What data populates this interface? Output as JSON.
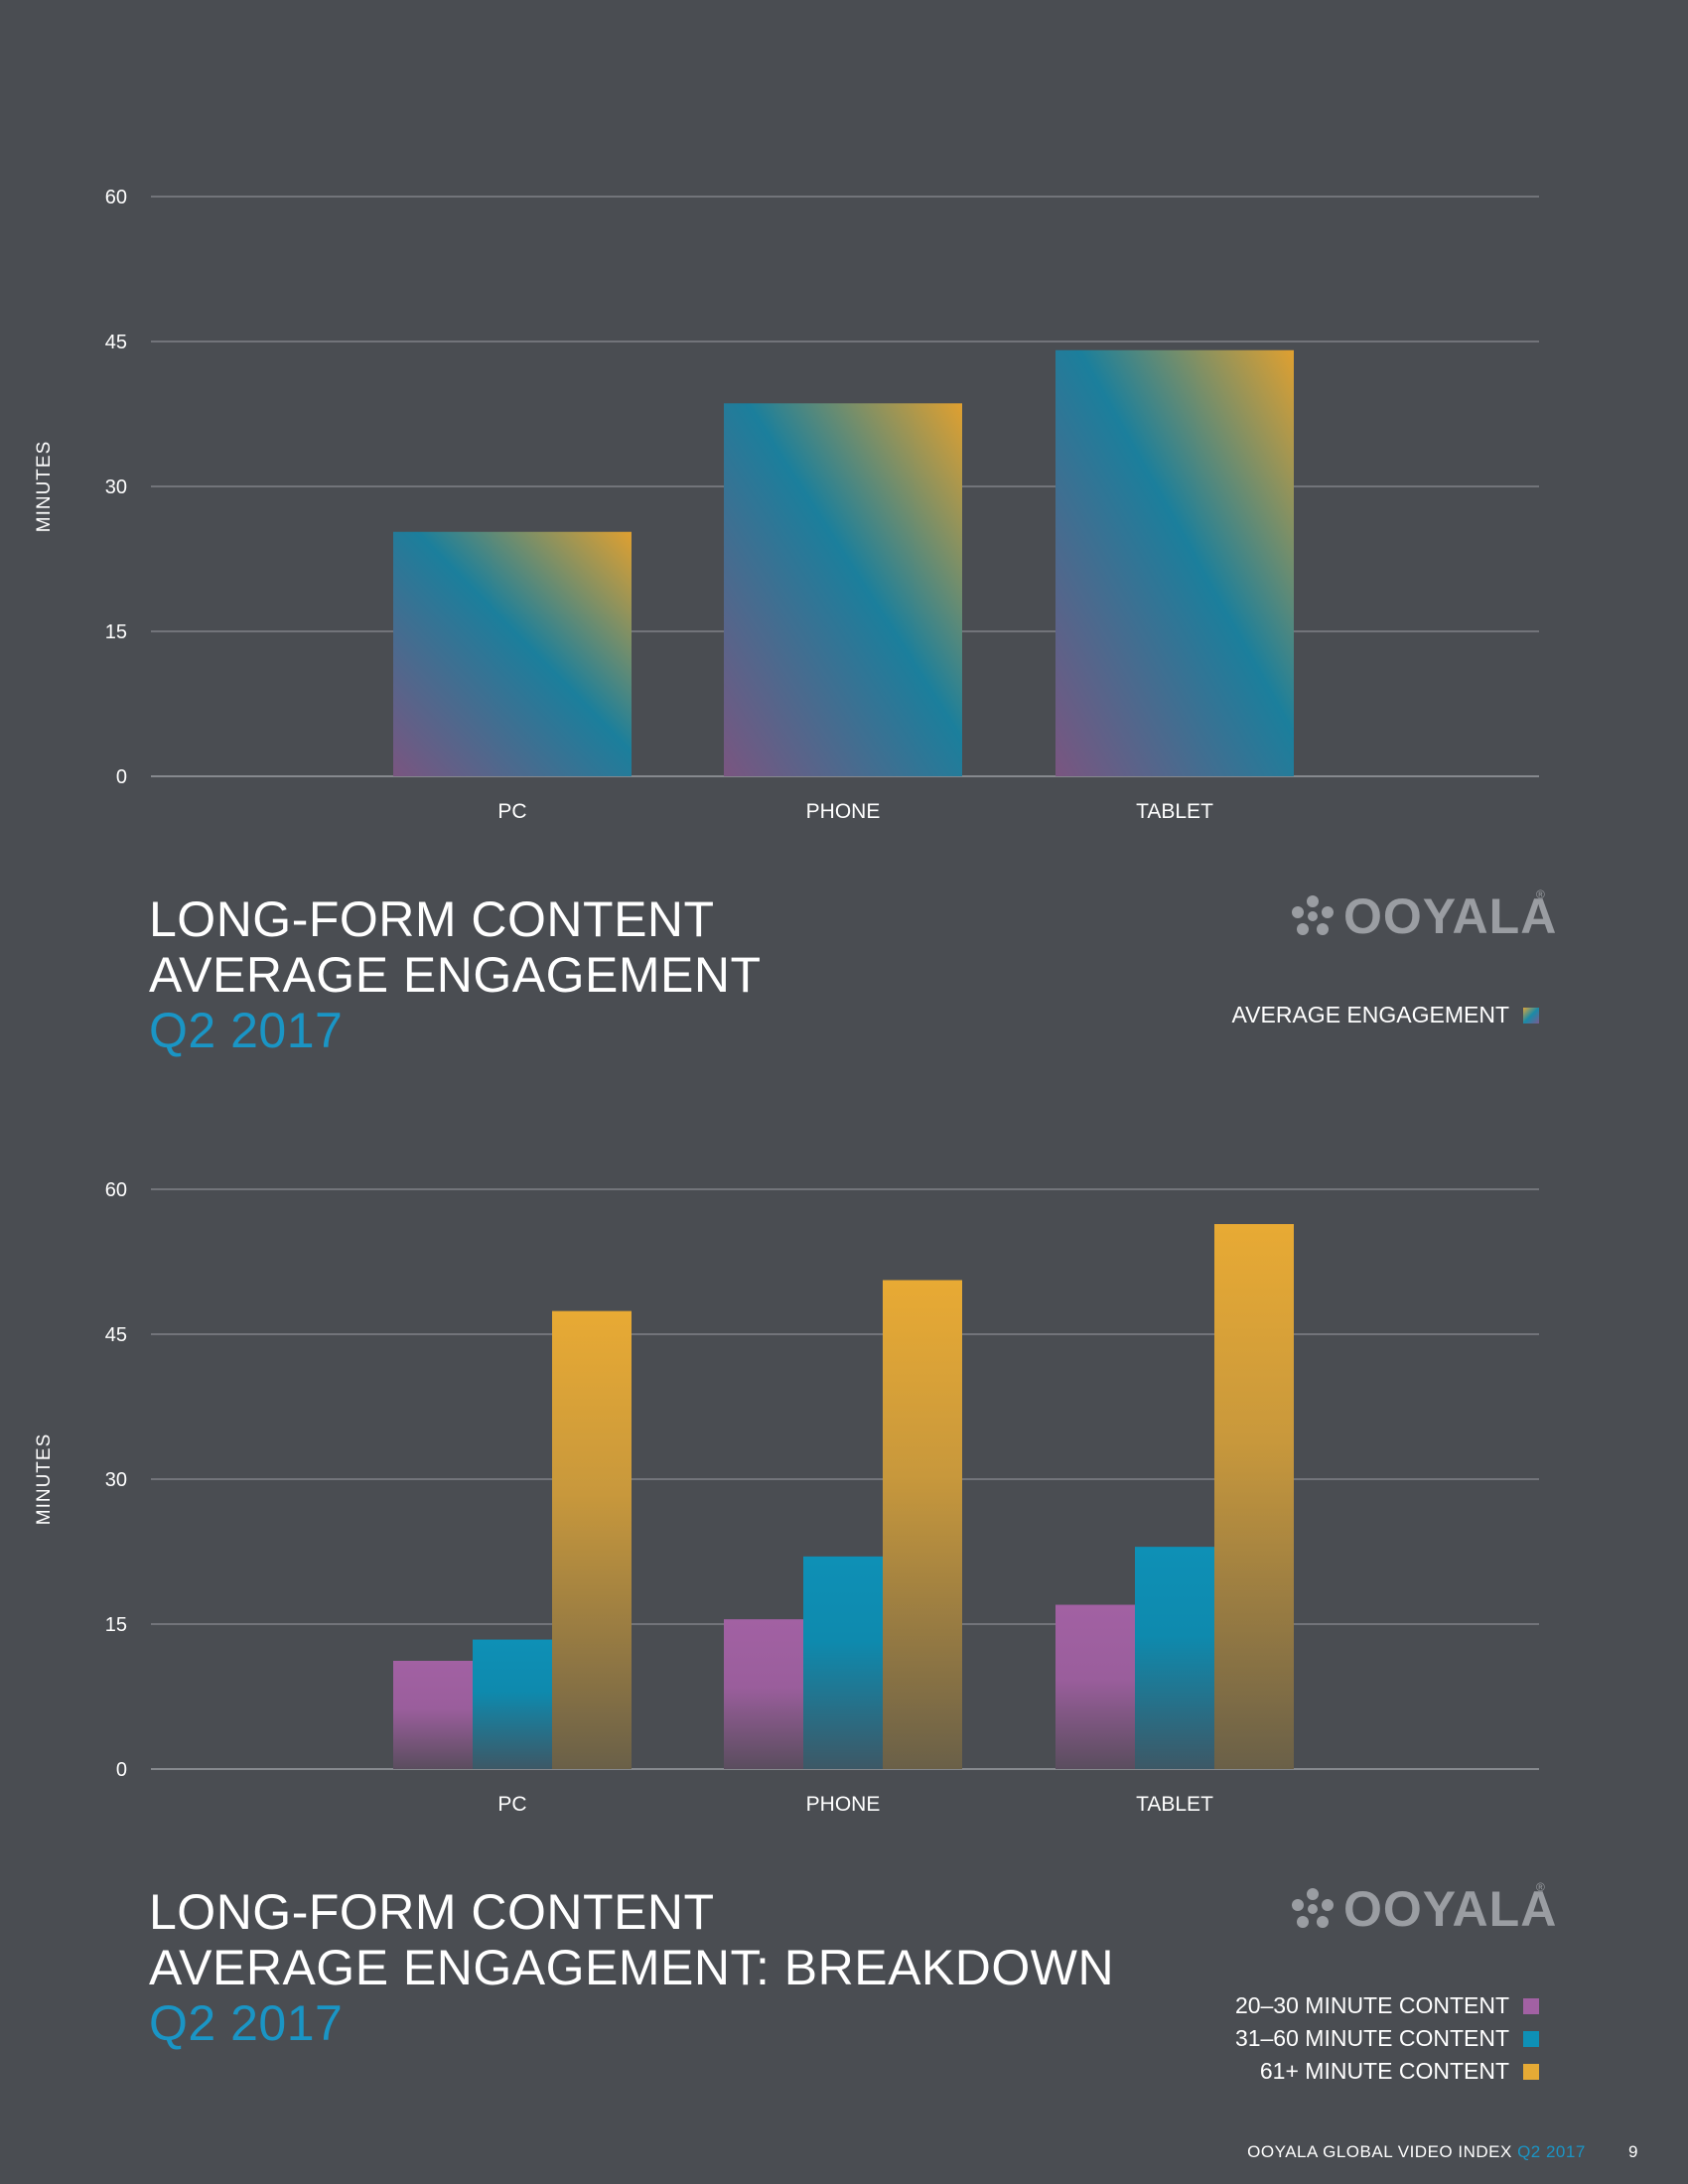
{
  "chart_data": [
    {
      "type": "bar",
      "title": "LONG-FORM CONTENT AVERAGE ENGAGEMENT Q2 2017",
      "categories": [
        "PC",
        "PHONE",
        "TABLET"
      ],
      "series": [
        {
          "name": "AVERAGE ENGAGEMENT",
          "values": [
            25.3,
            38.6,
            44.1
          ]
        }
      ],
      "ylabel": "MINUTES",
      "xlabel": "",
      "ylim": [
        0,
        60
      ],
      "yticks": [
        "0",
        "15",
        "30",
        "45",
        "60"
      ],
      "grid": true,
      "legend_position": "bottom-right"
    },
    {
      "type": "bar",
      "title": "LONG-FORM CONTENT AVERAGE ENGAGEMENT: BREAKDOWN Q2 2017",
      "categories": [
        "PC",
        "PHONE",
        "TABLET"
      ],
      "series": [
        {
          "name": "20–30 MINUTE CONTENT",
          "values": [
            11.2,
            15.5,
            17.0
          ]
        },
        {
          "name": "31–60 MINUTE CONTENT",
          "values": [
            13.4,
            22.0,
            23.0
          ]
        },
        {
          "name": "61+ MINUTE CONTENT",
          "values": [
            47.4,
            50.6,
            56.4
          ]
        }
      ],
      "ylabel": "MINUTES",
      "xlabel": "",
      "ylim": [
        0,
        60
      ],
      "yticks": [
        "0",
        "15",
        "30",
        "45",
        "60"
      ],
      "grid": true,
      "legend_position": "bottom-right"
    }
  ],
  "titles": {
    "chart1": {
      "line1": "LONG-FORM CONTENT",
      "line2": "AVERAGE ENGAGEMENT",
      "line3": "Q2 2017"
    },
    "chart2": {
      "line1": "LONG-FORM CONTENT",
      "line2": "AVERAGE ENGAGEMENT: BREAKDOWN",
      "line3": "Q2 2017"
    }
  },
  "logo": {
    "text": "OOYALA",
    "reg": "®"
  },
  "legends": {
    "chart1": [
      {
        "label": "AVERAGE ENGAGEMENT"
      }
    ],
    "chart2": [
      {
        "label": "20–30 MINUTE CONTENT",
        "color": "#a261a3"
      },
      {
        "label": "31–60 MINUTE CONTENT",
        "color": "#0e90b6"
      },
      {
        "label": "61+ MINUTE CONTENT",
        "color": "#e6aa35"
      }
    ]
  },
  "footer": {
    "text": "OOYALA GLOBAL VIDEO INDEX",
    "accent": "Q2 2017",
    "page": "9"
  },
  "colors": {
    "background": "#4a4d52",
    "accent_blue": "#1a95c5",
    "series_purple": "#a261a3",
    "series_blue": "#0e90b6",
    "series_orange": "#e6aa35",
    "gridline": "#8a8d92"
  }
}
